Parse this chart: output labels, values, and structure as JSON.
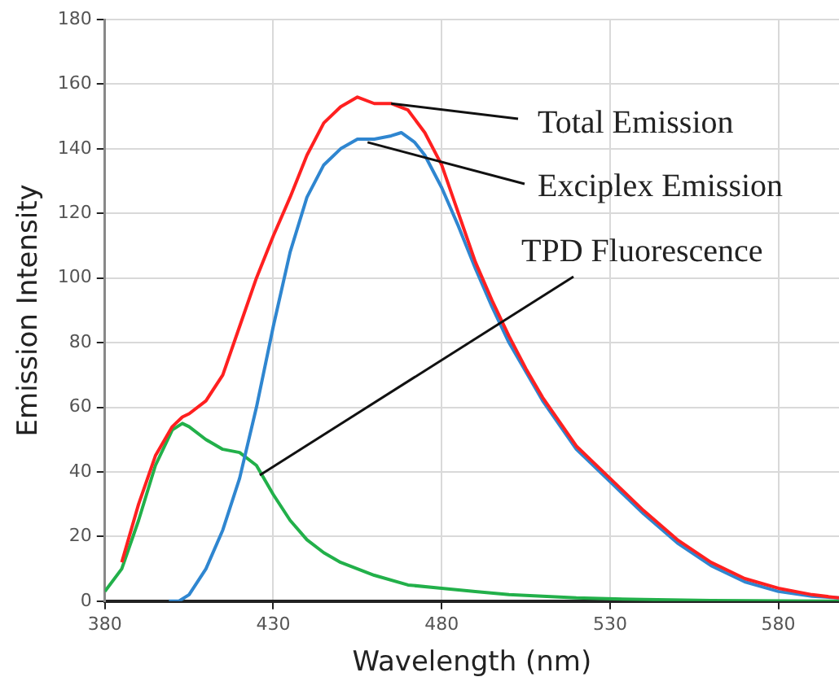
{
  "chart_data": {
    "type": "line",
    "xlabel": "Wavelength (nm)",
    "ylabel": "Emission Intensity",
    "xlim": [
      380,
      598
    ],
    "xticks": [
      380,
      430,
      480,
      530,
      580
    ],
    "ylim": [
      0,
      180
    ],
    "yticks": [
      0,
      20,
      40,
      60,
      80,
      100,
      120,
      140,
      160,
      180
    ],
    "grid": true,
    "legend": false,
    "marker": "none",
    "line_style": "solid",
    "series": [
      {
        "color": "#ff2020",
        "x": [
          385,
          390,
          395,
          400,
          403,
          405,
          410,
          415,
          420,
          425,
          430,
          435,
          440,
          445,
          450,
          455,
          460,
          465,
          470,
          475,
          480,
          485,
          490,
          495,
          500,
          505,
          510,
          520,
          530,
          540,
          550,
          560,
          570,
          580,
          590,
          598
        ],
        "values": [
          12,
          30,
          45,
          54,
          57,
          58,
          62,
          70,
          85,
          100,
          113,
          125,
          138,
          148,
          153,
          156,
          154,
          154,
          152,
          145,
          135,
          120,
          105,
          93,
          82,
          72,
          63,
          48,
          38,
          28,
          19,
          12,
          7,
          4,
          2,
          1
        ]
      },
      {
        "color": "#2f86d0",
        "x": [
          399,
          402,
          405,
          410,
          415,
          420,
          425,
          430,
          435,
          440,
          445,
          450,
          455,
          460,
          465,
          468,
          472,
          475,
          480,
          485,
          490,
          495,
          500,
          505,
          510,
          520,
          530,
          540,
          550,
          560,
          570,
          580,
          590,
          598
        ],
        "values": [
          0,
          0,
          2,
          10,
          22,
          38,
          60,
          85,
          108,
          125,
          135,
          140,
          143,
          143,
          144,
          145,
          142,
          138,
          128,
          116,
          103,
          91,
          80,
          71,
          62,
          47,
          37,
          27,
          18,
          11,
          6,
          3,
          1.5,
          1
        ]
      },
      {
        "color": "#22b04a",
        "x": [
          380,
          385,
          390,
          395,
          400,
          403,
          405,
          410,
          415,
          420,
          425,
          430,
          435,
          440,
          445,
          450,
          460,
          470,
          480,
          490,
          500,
          520,
          540,
          560,
          598
        ],
        "values": [
          3,
          10,
          25,
          42,
          53,
          55,
          54,
          50,
          47,
          46,
          42,
          33,
          25,
          19,
          15,
          12,
          8,
          5,
          4,
          3,
          2,
          1,
          0.5,
          0.2,
          0
        ]
      }
    ],
    "annotations": [
      {
        "text": "Total Emission",
        "x": 465,
        "y": 154
      },
      {
        "text": "Exciplex Emission",
        "x": 458,
        "y": 142
      },
      {
        "text": "TPD Fluorescence",
        "x": 426,
        "y": 39
      }
    ]
  }
}
